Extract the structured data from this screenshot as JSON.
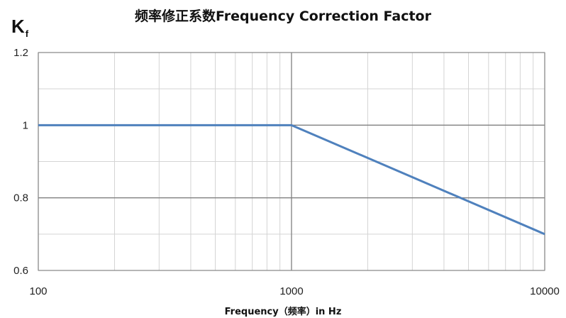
{
  "chart_data": {
    "type": "line",
    "title": "频率修正系数Frequency Correction Factor",
    "ylabel_main": "K",
    "ylabel_sub": "f",
    "xlabel": "Frequency（频率）in Hz",
    "x_scale": "log",
    "xlim": [
      100,
      10000
    ],
    "ylim": [
      0.6,
      1.2
    ],
    "x_ticks": [
      100,
      1000,
      10000
    ],
    "x_tick_labels": [
      "100",
      "1000",
      "10000"
    ],
    "y_ticks": [
      0.6,
      0.8,
      1.0,
      1.2
    ],
    "y_tick_labels": [
      "0.6",
      "0.8",
      "1",
      "1.2"
    ],
    "grid": true,
    "series": [
      {
        "color": "#4F81BD",
        "x": [
          100,
          1000,
          10000
        ],
        "y": [
          1.0,
          1.0,
          0.7
        ]
      }
    ]
  }
}
